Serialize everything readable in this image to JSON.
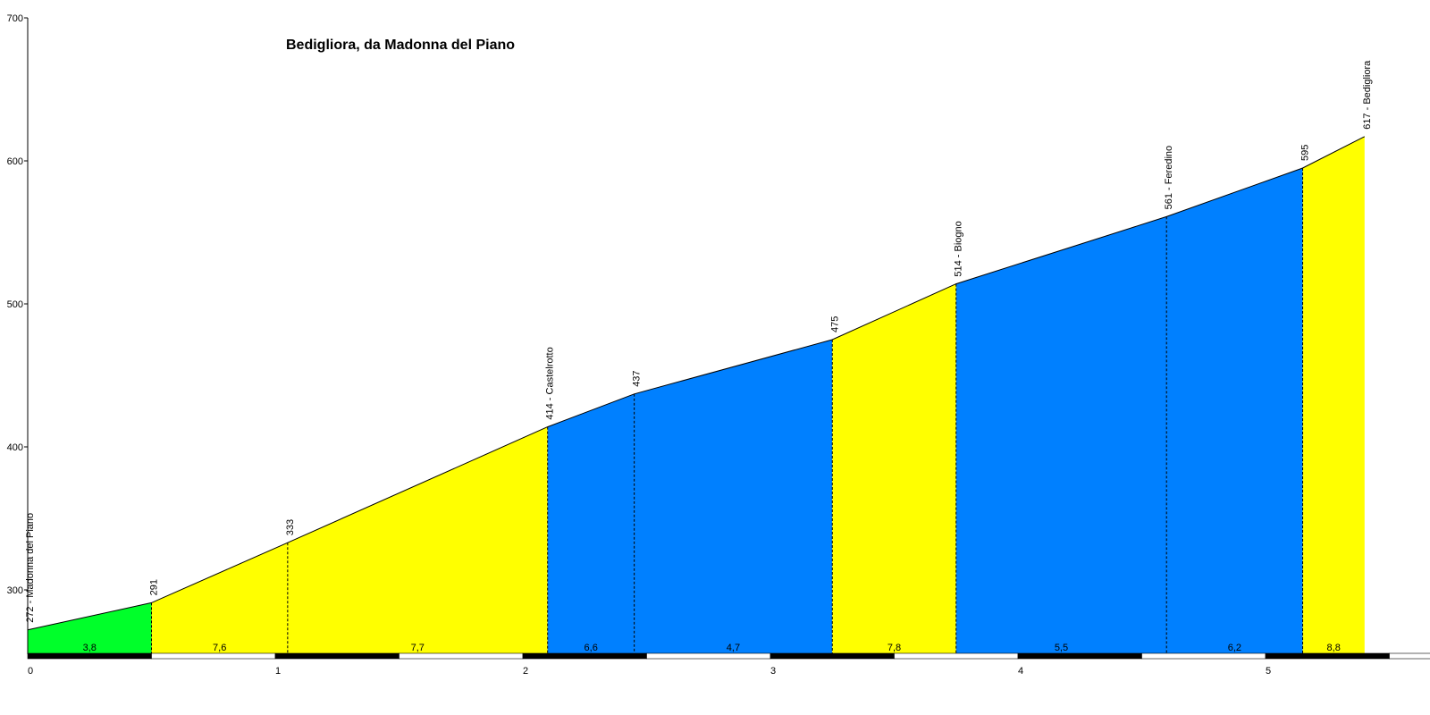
{
  "chart_data": {
    "type": "area",
    "title": "Bedigliora, da Madonna del Piano",
    "xlabel": "",
    "ylabel": "",
    "xlim": [
      0,
      5.75
    ],
    "ylim": [
      255,
      700
    ],
    "x_ticks": [
      0,
      1,
      2,
      3,
      4,
      5
    ],
    "x_tick_labels": [
      "0",
      "1",
      "2",
      "3",
      "4",
      "5"
    ],
    "y_ticks": [
      300,
      400,
      500,
      600,
      700
    ],
    "y_tick_labels": [
      "300",
      "400",
      "500",
      "600",
      "700"
    ],
    "grid": false,
    "legend": "none",
    "points": [
      {
        "x": 0,
        "y": 272,
        "label": "272 - Madonna del Piano"
      },
      {
        "x": 0.5,
        "y": 291,
        "label": "291"
      },
      {
        "x": 1.05,
        "y": 333,
        "label": "333"
      },
      {
        "x": 2.1,
        "y": 414,
        "label": "414 - Castelrotto"
      },
      {
        "x": 2.45,
        "y": 437,
        "label": "437"
      },
      {
        "x": 3.25,
        "y": 475,
        "label": "475"
      },
      {
        "x": 3.75,
        "y": 514,
        "label": "514 - Biogno"
      },
      {
        "x": 4.6,
        "y": 561,
        "label": "561 - Feredino"
      },
      {
        "x": 5.15,
        "y": 595,
        "label": "595"
      },
      {
        "x": 5.4,
        "y": 617,
        "label": "617 - Bedigliora"
      }
    ],
    "segments": [
      {
        "from": 0,
        "to": 0.5,
        "grade": "3,8",
        "color": "#00ff2a"
      },
      {
        "from": 0.5,
        "to": 1.05,
        "grade": "7,6",
        "color": "#ffff00"
      },
      {
        "from": 1.05,
        "to": 2.1,
        "grade": "7,7",
        "color": "#ffff00"
      },
      {
        "from": 2.1,
        "to": 2.45,
        "grade": "6,6",
        "color": "#0080ff"
      },
      {
        "from": 2.45,
        "to": 3.25,
        "grade": "4,7",
        "color": "#0080ff"
      },
      {
        "from": 3.25,
        "to": 3.75,
        "grade": "7,8",
        "color": "#ffff00"
      },
      {
        "from": 3.75,
        "to": 4.6,
        "grade": "5,5",
        "color": "#0080ff"
      },
      {
        "from": 4.6,
        "to": 5.15,
        "grade": "6,2",
        "color": "#0080ff"
      },
      {
        "from": 5.15,
        "to": 5.4,
        "grade": "8,8",
        "color": "#ffff00"
      }
    ]
  }
}
